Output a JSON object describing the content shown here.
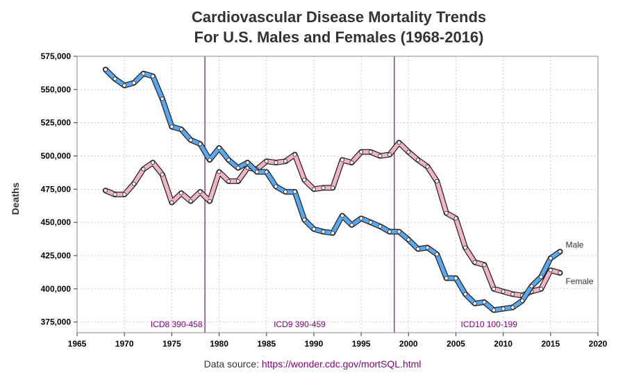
{
  "colors": {
    "male": "#5aa8f0",
    "female": "#f4b4c2",
    "outline": "#222222",
    "era": "#800080",
    "grid": "#c8c8c8"
  },
  "chart_data": {
    "type": "line",
    "title_line1": "Cardiovascular Disease Mortality Trends",
    "title_line2": "For U.S. Males and Females (1968-2016)",
    "xlabel": "",
    "ylabel": "Deaths",
    "xlim": [
      1965,
      2020
    ],
    "ylim": [
      367000,
      575000
    ],
    "xticks": [
      "1965",
      "1970",
      "1975",
      "1980",
      "1985",
      "1990",
      "1995",
      "2000",
      "2005",
      "2010",
      "2015",
      "2020"
    ],
    "yticks": [
      "375,000",
      "400,000",
      "425,000",
      "450,000",
      "475,000",
      "500,000",
      "525,000",
      "550,000",
      "575,000"
    ],
    "grid": true,
    "x": [
      1968,
      1969,
      1970,
      1971,
      1972,
      1973,
      1974,
      1975,
      1976,
      1977,
      1978,
      1979,
      1980,
      1981,
      1982,
      1983,
      1984,
      1985,
      1986,
      1987,
      1988,
      1989,
      1990,
      1991,
      1992,
      1993,
      1994,
      1995,
      1996,
      1997,
      1998,
      1999,
      2000,
      2001,
      2002,
      2003,
      2004,
      2005,
      2006,
      2007,
      2008,
      2009,
      2010,
      2011,
      2012,
      2013,
      2014,
      2015,
      2016
    ],
    "series": [
      {
        "name": "Male",
        "values": [
          565000,
          558000,
          553000,
          555000,
          562000,
          560000,
          543000,
          522000,
          520000,
          512000,
          509000,
          497000,
          506000,
          497000,
          491000,
          495000,
          488000,
          488000,
          477000,
          473000,
          473000,
          452000,
          445000,
          443000,
          442000,
          455000,
          448000,
          453000,
          450000,
          447000,
          443000,
          443000,
          437000,
          430000,
          431000,
          426000,
          408000,
          408000,
          396000,
          389000,
          390000,
          384000,
          385000,
          386000,
          391000,
          402000,
          409000,
          423000,
          428000
        ]
      },
      {
        "name": "Female",
        "values": [
          474000,
          471000,
          471000,
          479000,
          490000,
          495000,
          486000,
          465000,
          472000,
          466000,
          473000,
          466000,
          488000,
          481000,
          481000,
          491000,
          490000,
          496000,
          495000,
          496000,
          501000,
          482000,
          475000,
          476000,
          476000,
          497000,
          495000,
          503000,
          503000,
          500000,
          501000,
          510000,
          503000,
          497000,
          492000,
          481000,
          457000,
          453000,
          431000,
          420000,
          418000,
          400000,
          398000,
          396000,
          395000,
          398000,
          400000,
          414000,
          412000
        ]
      }
    ],
    "reference_lines": [
      1978.5,
      1998.5
    ],
    "eras": [
      {
        "label": "ICD8 390-458",
        "x": 1975.5
      },
      {
        "label": "ICD9 390-459",
        "x": 1988.5
      },
      {
        "label": "ICD10 100-199",
        "x": 2008.5
      }
    ],
    "source_prefix": "Data source: ",
    "source_link": "https://wonder.cdc.gov/mortSQL.html"
  }
}
